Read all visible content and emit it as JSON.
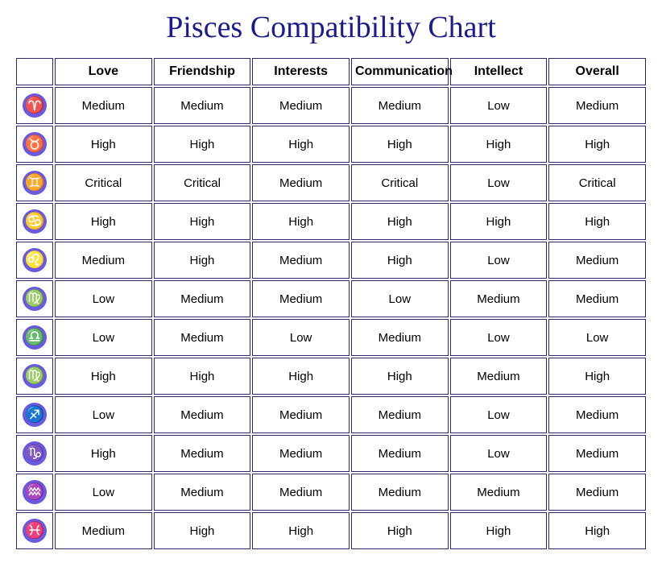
{
  "title": "Pisces Compatibility Chart",
  "title_color": "#1b1b8f",
  "title_fontsize": 38,
  "table": {
    "border_color": "#2a2a6e",
    "border_width": 1,
    "cell_bg": "#ffffff",
    "header_fontsize": 16,
    "cell_fontsize": 15,
    "icon_bg": "#6a5ae0",
    "icon_fg": "#ffffff",
    "icon_diameter": 30,
    "icon_fontsize": 20,
    "columns": [
      "Love",
      "Friendship",
      "Interests",
      "Communication",
      "Intellect",
      "Overall"
    ],
    "signs": [
      {
        "name": "aries",
        "glyph": "♈"
      },
      {
        "name": "taurus",
        "glyph": "♉"
      },
      {
        "name": "gemini",
        "glyph": "♊"
      },
      {
        "name": "cancer",
        "glyph": "♋"
      },
      {
        "name": "leo",
        "glyph": "♌"
      },
      {
        "name": "virgo",
        "glyph": "♍"
      },
      {
        "name": "libra",
        "glyph": "♎"
      },
      {
        "name": "scorpio",
        "glyph": "♍"
      },
      {
        "name": "sagittarius",
        "glyph": "♐"
      },
      {
        "name": "capricorn",
        "glyph": "♑"
      },
      {
        "name": "aquarius",
        "glyph": "♒"
      },
      {
        "name": "pisces",
        "glyph": "♓"
      }
    ],
    "rows": [
      [
        "Medium",
        "Medium",
        "Medium",
        "Medium",
        "Low",
        "Medium"
      ],
      [
        "High",
        "High",
        "High",
        "High",
        "High",
        "High"
      ],
      [
        "Critical",
        "Critical",
        "Medium",
        "Critical",
        "Low",
        "Critical"
      ],
      [
        "High",
        "High",
        "High",
        "High",
        "High",
        "High"
      ],
      [
        "Medium",
        "High",
        "Medium",
        "High",
        "Low",
        "Medium"
      ],
      [
        "Low",
        "Medium",
        "Medium",
        "Low",
        "Medium",
        "Medium"
      ],
      [
        "Low",
        "Medium",
        "Low",
        "Medium",
        "Low",
        "Low"
      ],
      [
        "High",
        "High",
        "High",
        "High",
        "Medium",
        "High"
      ],
      [
        "Low",
        "Medium",
        "Medium",
        "Medium",
        "Low",
        "Medium"
      ],
      [
        "High",
        "Medium",
        "Medium",
        "Medium",
        "Low",
        "Medium"
      ],
      [
        "Low",
        "Medium",
        "Medium",
        "Medium",
        "Medium",
        "Medium"
      ],
      [
        "Medium",
        "High",
        "High",
        "High",
        "High",
        "High"
      ]
    ]
  }
}
